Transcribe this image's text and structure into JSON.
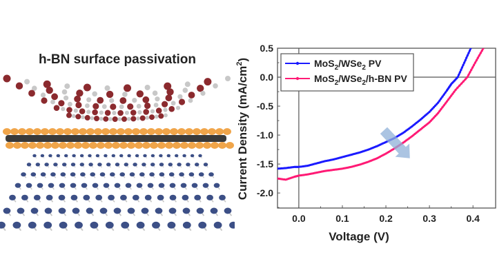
{
  "illustration": {
    "title": "h-BN surface passivation",
    "layers": [
      {
        "name": "h-BN",
        "atom_colors": [
          "#8b2a2e",
          "#c8c8c8"
        ]
      },
      {
        "name": "WSe2",
        "atom_colors": [
          "#f0a54a",
          "#3a3a3a"
        ]
      },
      {
        "name": "MoS2",
        "atom_colors": [
          "#3c4f86",
          "#c8c8c8"
        ]
      }
    ]
  },
  "chart_data": {
    "type": "line",
    "title": "",
    "xlabel": "Voltage (V)",
    "ylabel": "Current Density (mA/cm²)",
    "xlim": [
      -0.049,
      0.452
    ],
    "ylim": [
      -2.26,
      0.5
    ],
    "xticks": [
      0.0,
      0.1,
      0.2,
      0.3,
      0.4
    ],
    "xtick_labels": [
      "0.0",
      "0.1",
      "0.2",
      "0.3",
      "0.4"
    ],
    "yticks": [
      0.5,
      0.0,
      -0.5,
      -1.0,
      -1.5,
      -2.0
    ],
    "ytick_labels": [
      "0.5",
      "0.0",
      "-0.5",
      "-1.0",
      "-1.5",
      "-2.0"
    ],
    "grid": false,
    "reference_lines": {
      "x": 0.0,
      "y": 0.0
    },
    "legend_position": "top-left",
    "annotation": {
      "type": "arrow",
      "meaning": "current density increase",
      "color": "#8fb0d8",
      "from": [
        0.195,
        -0.92
      ],
      "to": [
        0.255,
        -1.4
      ]
    },
    "series": [
      {
        "name": "MoS2/WSe2 PV",
        "legend_main": "MoS",
        "legend_sub1": "2",
        "legend_mid": "/WSe",
        "legend_sub2": "2",
        "legend_tail": " PV",
        "color": "#1a1aff",
        "x": [
          -0.049,
          -0.03,
          -0.01,
          0.0,
          0.02,
          0.04,
          0.06,
          0.08,
          0.1,
          0.12,
          0.14,
          0.16,
          0.18,
          0.2,
          0.22,
          0.24,
          0.26,
          0.28,
          0.3,
          0.32,
          0.34,
          0.35,
          0.365,
          0.38,
          0.395
        ],
        "y": [
          -1.58,
          -1.57,
          -1.55,
          -1.55,
          -1.53,
          -1.49,
          -1.45,
          -1.42,
          -1.38,
          -1.34,
          -1.3,
          -1.25,
          -1.19,
          -1.12,
          -1.05,
          -0.96,
          -0.85,
          -0.73,
          -0.6,
          -0.44,
          -0.23,
          -0.12,
          0.0,
          0.25,
          0.5
        ]
      },
      {
        "name": "MoS2/WSe2/h-BN PV",
        "legend_main": "MoS",
        "legend_sub1": "2",
        "legend_mid": "/WSe",
        "legend_sub2": "2",
        "legend_tail": "/h-BN PV",
        "color": "#ff1a75",
        "x": [
          -0.049,
          -0.03,
          -0.01,
          0.0,
          0.02,
          0.04,
          0.06,
          0.08,
          0.1,
          0.12,
          0.14,
          0.16,
          0.18,
          0.2,
          0.22,
          0.24,
          0.26,
          0.28,
          0.3,
          0.32,
          0.34,
          0.36,
          0.387,
          0.405,
          0.424
        ],
        "y": [
          -1.75,
          -1.77,
          -1.72,
          -1.7,
          -1.68,
          -1.65,
          -1.62,
          -1.6,
          -1.58,
          -1.55,
          -1.51,
          -1.46,
          -1.4,
          -1.32,
          -1.23,
          -1.13,
          -1.02,
          -0.9,
          -0.78,
          -0.62,
          -0.42,
          -0.22,
          0.0,
          0.25,
          0.5
        ]
      }
    ]
  }
}
